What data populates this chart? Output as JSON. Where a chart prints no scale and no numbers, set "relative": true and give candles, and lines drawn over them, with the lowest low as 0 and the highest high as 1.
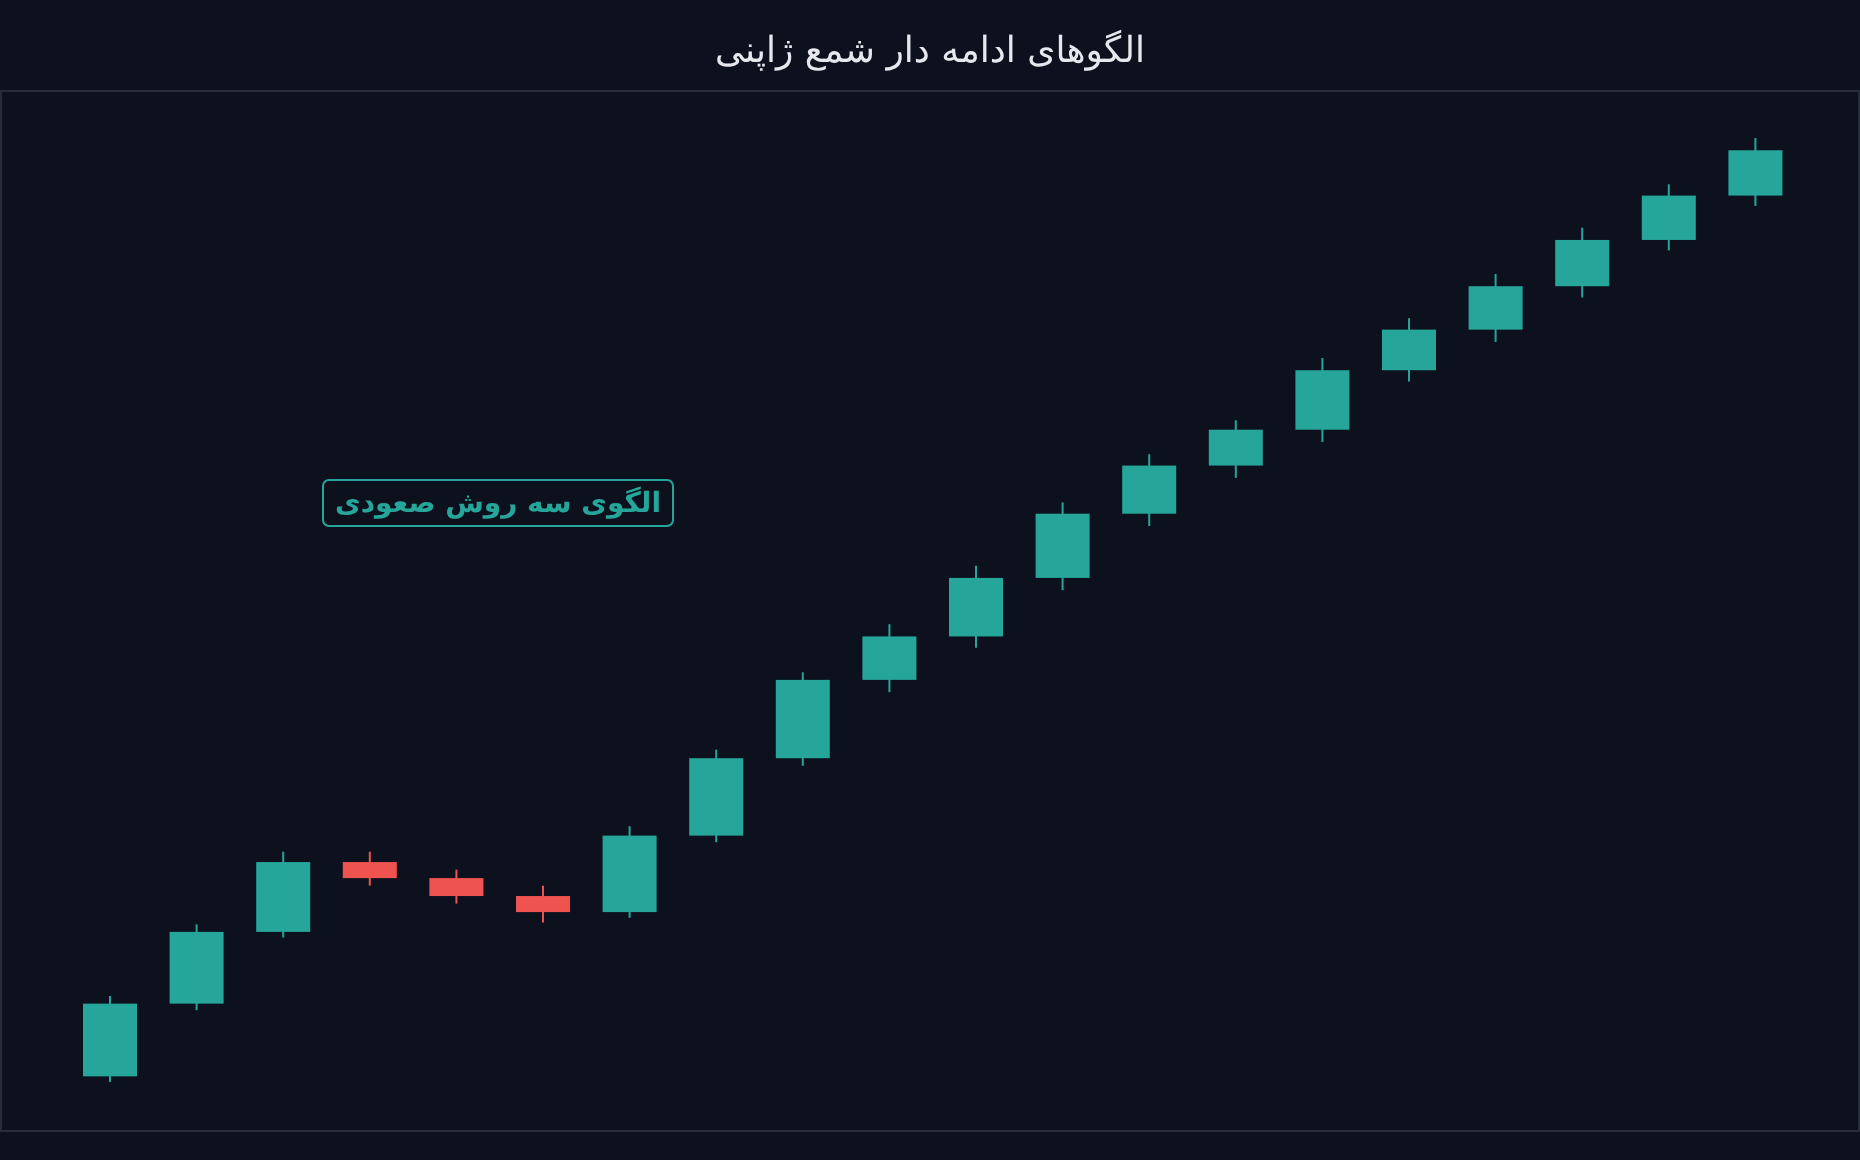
{
  "chart_data": {
    "type": "candlestick",
    "title": "الگوهای ادامه دار شمع ژاپنی",
    "relative": true,
    "categories": [
      null,
      null,
      null,
      null,
      null,
      null,
      null,
      null,
      null,
      null,
      null,
      null,
      null,
      null,
      null,
      null,
      null,
      null,
      null,
      null
    ],
    "ohlc": [
      [
        0.006,
        0.091,
        0,
        0.083
      ],
      [
        0.083,
        0.167,
        0.076,
        0.159
      ],
      [
        0.159,
        0.244,
        0.153,
        0.233
      ],
      [
        0.233,
        0.244,
        0.208,
        0.216
      ],
      [
        0.216,
        0.225,
        0.189,
        0.197
      ],
      [
        0.197,
        0.208,
        0.169,
        0.18
      ],
      [
        0.18,
        0.271,
        0.174,
        0.261
      ],
      [
        0.261,
        0.352,
        0.254,
        0.343
      ],
      [
        0.343,
        0.434,
        0.335,
        0.426
      ],
      [
        0.426,
        0.485,
        0.413,
        0.472
      ],
      [
        0.472,
        0.547,
        0.46,
        0.534
      ],
      [
        0.534,
        0.614,
        0.521,
        0.602
      ],
      [
        0.602,
        0.665,
        0.589,
        0.653
      ],
      [
        0.653,
        0.701,
        0.64,
        0.691
      ],
      [
        0.691,
        0.767,
        0.678,
        0.754
      ],
      [
        0.754,
        0.809,
        0.742,
        0.797
      ],
      [
        0.797,
        0.856,
        0.784,
        0.843
      ],
      [
        0.843,
        0.905,
        0.831,
        0.892
      ],
      [
        0.892,
        0.951,
        0.881,
        0.939
      ],
      [
        0.939,
        1,
        0.928,
        0.987
      ]
    ],
    "colors": [
      "#26a69a",
      "#26a69a",
      "#26a69a",
      "#ef5350",
      "#ef5350",
      "#ef5350",
      "#26a69a",
      "#26a69a",
      "#26a69a",
      "#26a69a",
      "#26a69a",
      "#26a69a",
      "#26a69a",
      "#26a69a",
      "#26a69a",
      "#26a69a",
      "#26a69a",
      "#26a69a",
      "#26a69a",
      "#26a69a"
    ],
    "annotations": [
      "الگوی سه روش صعودی"
    ]
  }
}
